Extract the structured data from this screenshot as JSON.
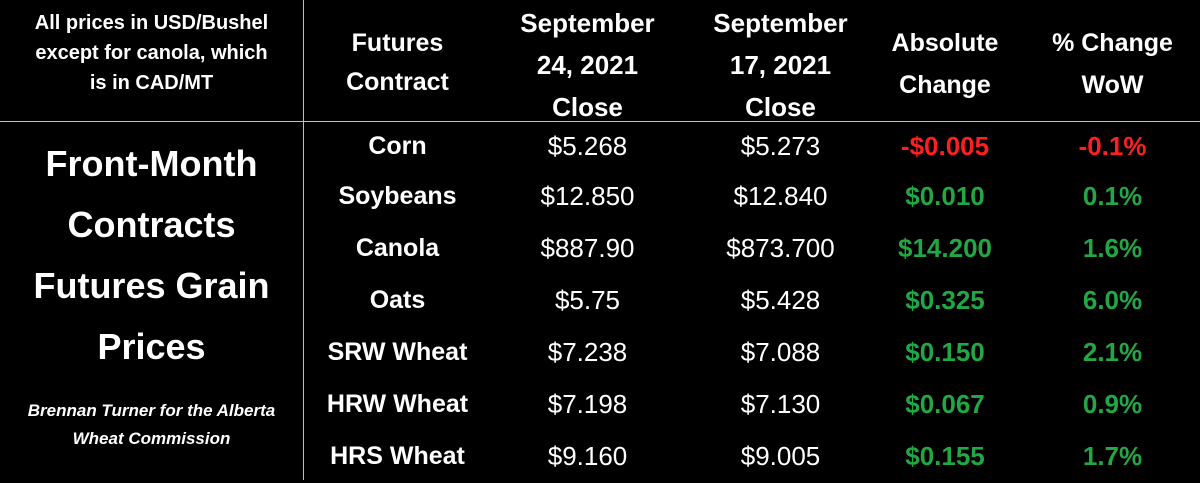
{
  "header": {
    "note": [
      "All prices in USD/Bushel",
      "except for canola, which",
      "is in CAD/MT"
    ],
    "contract": [
      "Futures",
      "Contract"
    ],
    "date1": [
      "September",
      "24, 2021",
      "Close"
    ],
    "date2": [
      "September",
      "17, 2021",
      "Close"
    ],
    "abs": [
      "Absolute",
      "Change"
    ],
    "pct": [
      "% Change",
      "WoW"
    ]
  },
  "title": [
    "Front-Month",
    "Contracts",
    "Futures Grain",
    "Prices"
  ],
  "credit": [
    "Brennan Turner for the Alberta",
    "Wheat Commission"
  ],
  "colors": {
    "negative": "#ff1f1f",
    "positive": "#21a844",
    "text": "#ffffff",
    "background": "#000000"
  },
  "rows": [
    {
      "name": "Corn",
      "close_sep24": "$5.268",
      "close_sep17": "$5.273",
      "abs_change": "-$0.005",
      "pct_change": "-0.1%",
      "direction": "negative"
    },
    {
      "name": "Soybeans",
      "close_sep24": "$12.850",
      "close_sep17": "$12.840",
      "abs_change": "$0.010",
      "pct_change": "0.1%",
      "direction": "positive"
    },
    {
      "name": "Canola",
      "close_sep24": "$887.90",
      "close_sep17": "$873.700",
      "abs_change": "$14.200",
      "pct_change": "1.6%",
      "direction": "positive"
    },
    {
      "name": "Oats",
      "close_sep24": "$5.75",
      "close_sep17": "$5.428",
      "abs_change": "$0.325",
      "pct_change": "6.0%",
      "direction": "positive"
    },
    {
      "name": "SRW Wheat",
      "close_sep24": "$7.238",
      "close_sep17": "$7.088",
      "abs_change": "$0.150",
      "pct_change": "2.1%",
      "direction": "positive"
    },
    {
      "name": "HRW Wheat",
      "close_sep24": "$7.198",
      "close_sep17": "$7.130",
      "abs_change": "$0.067",
      "pct_change": "0.9%",
      "direction": "positive"
    },
    {
      "name": "HRS Wheat",
      "close_sep24": "$9.160",
      "close_sep17": "$9.005",
      "abs_change": "$0.155",
      "pct_change": "1.7%",
      "direction": "positive"
    }
  ]
}
